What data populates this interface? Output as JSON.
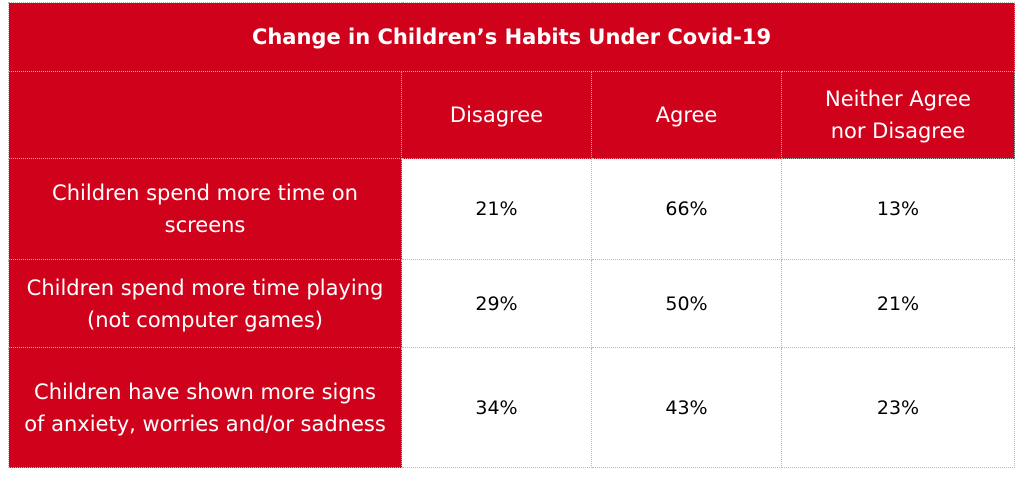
{
  "table": {
    "title": "Change in Children’s Habits Under Covid-19",
    "columns": [
      "",
      "Disagree",
      "Agree",
      "Neither Agree nor Disagree"
    ],
    "rows": [
      {
        "label": "Children spend more time on screens",
        "values": [
          "21%",
          "66%",
          "13%"
        ]
      },
      {
        "label": "Children spend more time playing (not computer games)",
        "values": [
          "29%",
          "50%",
          "21%"
        ]
      },
      {
        "label": "Children have shown more signs of anxiety, worries and/or sadness",
        "values": [
          "34%",
          "43%",
          "23%"
        ]
      }
    ]
  },
  "colors": {
    "header_red": "#d0021b",
    "text_on_red": "#ffffff",
    "cell_bg": "#ffffff"
  }
}
